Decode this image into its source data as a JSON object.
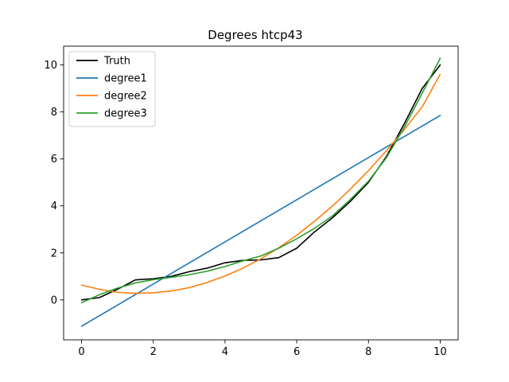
{
  "chart_data": {
    "type": "line",
    "title": "Degrees htcp43",
    "xlabel": "",
    "ylabel": "",
    "xlim": [
      -0.5,
      10.5
    ],
    "ylim": [
      -1.7,
      10.8
    ],
    "x_ticks": [
      0,
      2,
      4,
      6,
      8,
      10
    ],
    "y_ticks": [
      0,
      2,
      4,
      6,
      8,
      10
    ],
    "grid": false,
    "legend_position": "top-left",
    "series": [
      {
        "name": "Truth",
        "color": "#000000",
        "x": [
          0,
          0.5,
          1,
          1.5,
          2,
          2.5,
          3,
          3.5,
          4,
          4.5,
          5,
          5.5,
          6,
          6.5,
          7,
          7.5,
          8,
          8.5,
          9,
          9.5,
          10
        ],
        "y": [
          0.0,
          0.1,
          0.45,
          0.85,
          0.9,
          1.0,
          1.2,
          1.35,
          1.58,
          1.68,
          1.7,
          1.8,
          2.2,
          2.9,
          3.5,
          4.2,
          5.0,
          6.1,
          7.5,
          9.0,
          10.0
        ]
      },
      {
        "name": "degree1",
        "color": "#1f77b4",
        "x": [
          0,
          10
        ],
        "y": [
          -1.12,
          7.85
        ]
      },
      {
        "name": "degree2",
        "color": "#ff7f0e",
        "x": [
          0,
          0.5,
          1,
          1.5,
          2,
          2.5,
          3,
          3.5,
          4,
          4.5,
          5,
          5.5,
          6,
          6.5,
          7,
          7.5,
          8,
          8.5,
          9,
          9.5,
          10
        ],
        "y": [
          0.63,
          0.45,
          0.32,
          0.28,
          0.3,
          0.38,
          0.52,
          0.74,
          1.02,
          1.35,
          1.75,
          2.22,
          2.75,
          3.35,
          4.0,
          4.72,
          5.5,
          6.35,
          7.25,
          8.22,
          9.6
        ]
      },
      {
        "name": "degree3",
        "color": "#2ca02c",
        "x": [
          0,
          0.5,
          1,
          1.5,
          2,
          2.5,
          3,
          3.5,
          4,
          4.5,
          5,
          5.5,
          6,
          6.5,
          7,
          7.5,
          8,
          8.5,
          9,
          9.5,
          10
        ],
        "y": [
          -0.12,
          0.22,
          0.5,
          0.72,
          0.86,
          0.96,
          1.07,
          1.22,
          1.42,
          1.66,
          1.87,
          2.2,
          2.6,
          3.05,
          3.58,
          4.28,
          5.05,
          6.05,
          7.35,
          8.8,
          10.28
        ]
      }
    ]
  }
}
